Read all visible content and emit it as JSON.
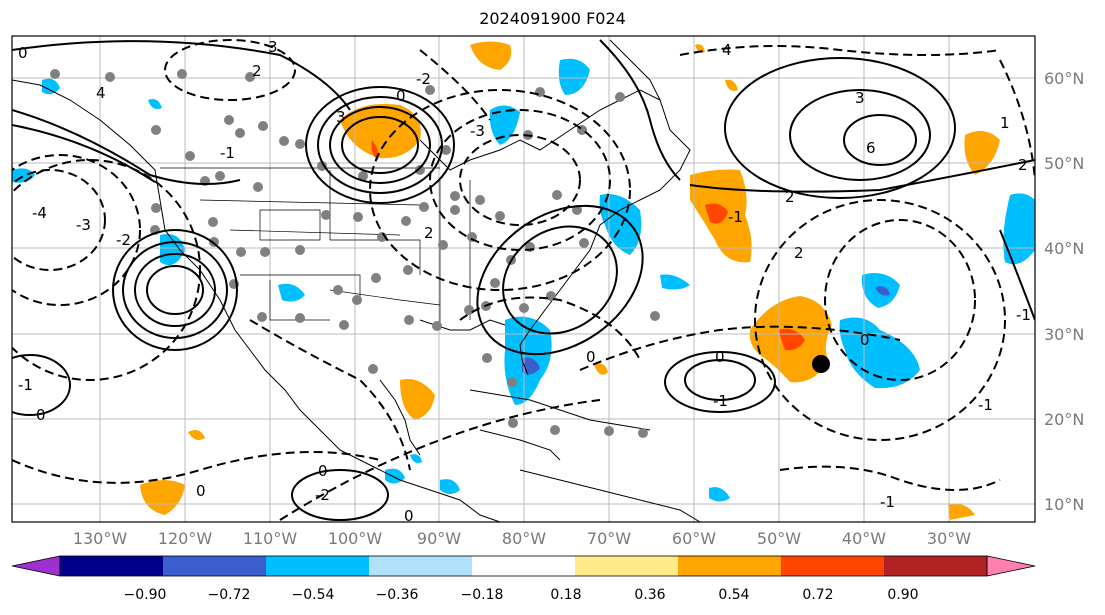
{
  "title": "2024091900 F024",
  "map": {
    "lon_ticks": [
      "130°W",
      "120°W",
      "110°W",
      "100°W",
      "90°W",
      "80°W",
      "70°W",
      "60°W",
      "50°W",
      "40°W",
      "30°W"
    ],
    "lat_ticks": [
      "60°N",
      "50°N",
      "40°N",
      "30°N",
      "20°N",
      "10°N"
    ],
    "contour_labels": [
      "0",
      "2",
      "4",
      "3",
      "3",
      "0",
      "-2",
      "4",
      "6",
      "3",
      "2",
      "-1",
      "-1",
      "0",
      "0",
      "-2",
      "0",
      "2",
      "-1",
      "0",
      "0",
      "-1",
      "-4",
      "-3",
      "-2",
      "-1",
      "0",
      "0",
      "-1",
      "2",
      "1",
      "-1",
      "-3",
      "2"
    ],
    "marker": {
      "lon": -45.4,
      "lat": 26.7,
      "color": "#000000"
    },
    "grid": true
  },
  "colorbar": {
    "ticks": [
      "−0.90",
      "−0.72",
      "−0.54",
      "−0.36",
      "−0.18",
      "0.18",
      "0.36",
      "0.54",
      "0.72",
      "0.90"
    ],
    "colors": [
      "#9c30d0",
      "#00008b",
      "#3a5fcd",
      "#00bfff",
      "#afe1fa",
      "#ffffff",
      "#ffeb8a",
      "#ffa500",
      "#ff4500",
      "#b22222",
      "#ff7fb0"
    ],
    "under_color": "#9c30d0",
    "over_color": "#ff7fb0"
  },
  "colors": {
    "positive_contour": "#000000",
    "negative_contour": "#000000",
    "station_dots": "#808080"
  }
}
